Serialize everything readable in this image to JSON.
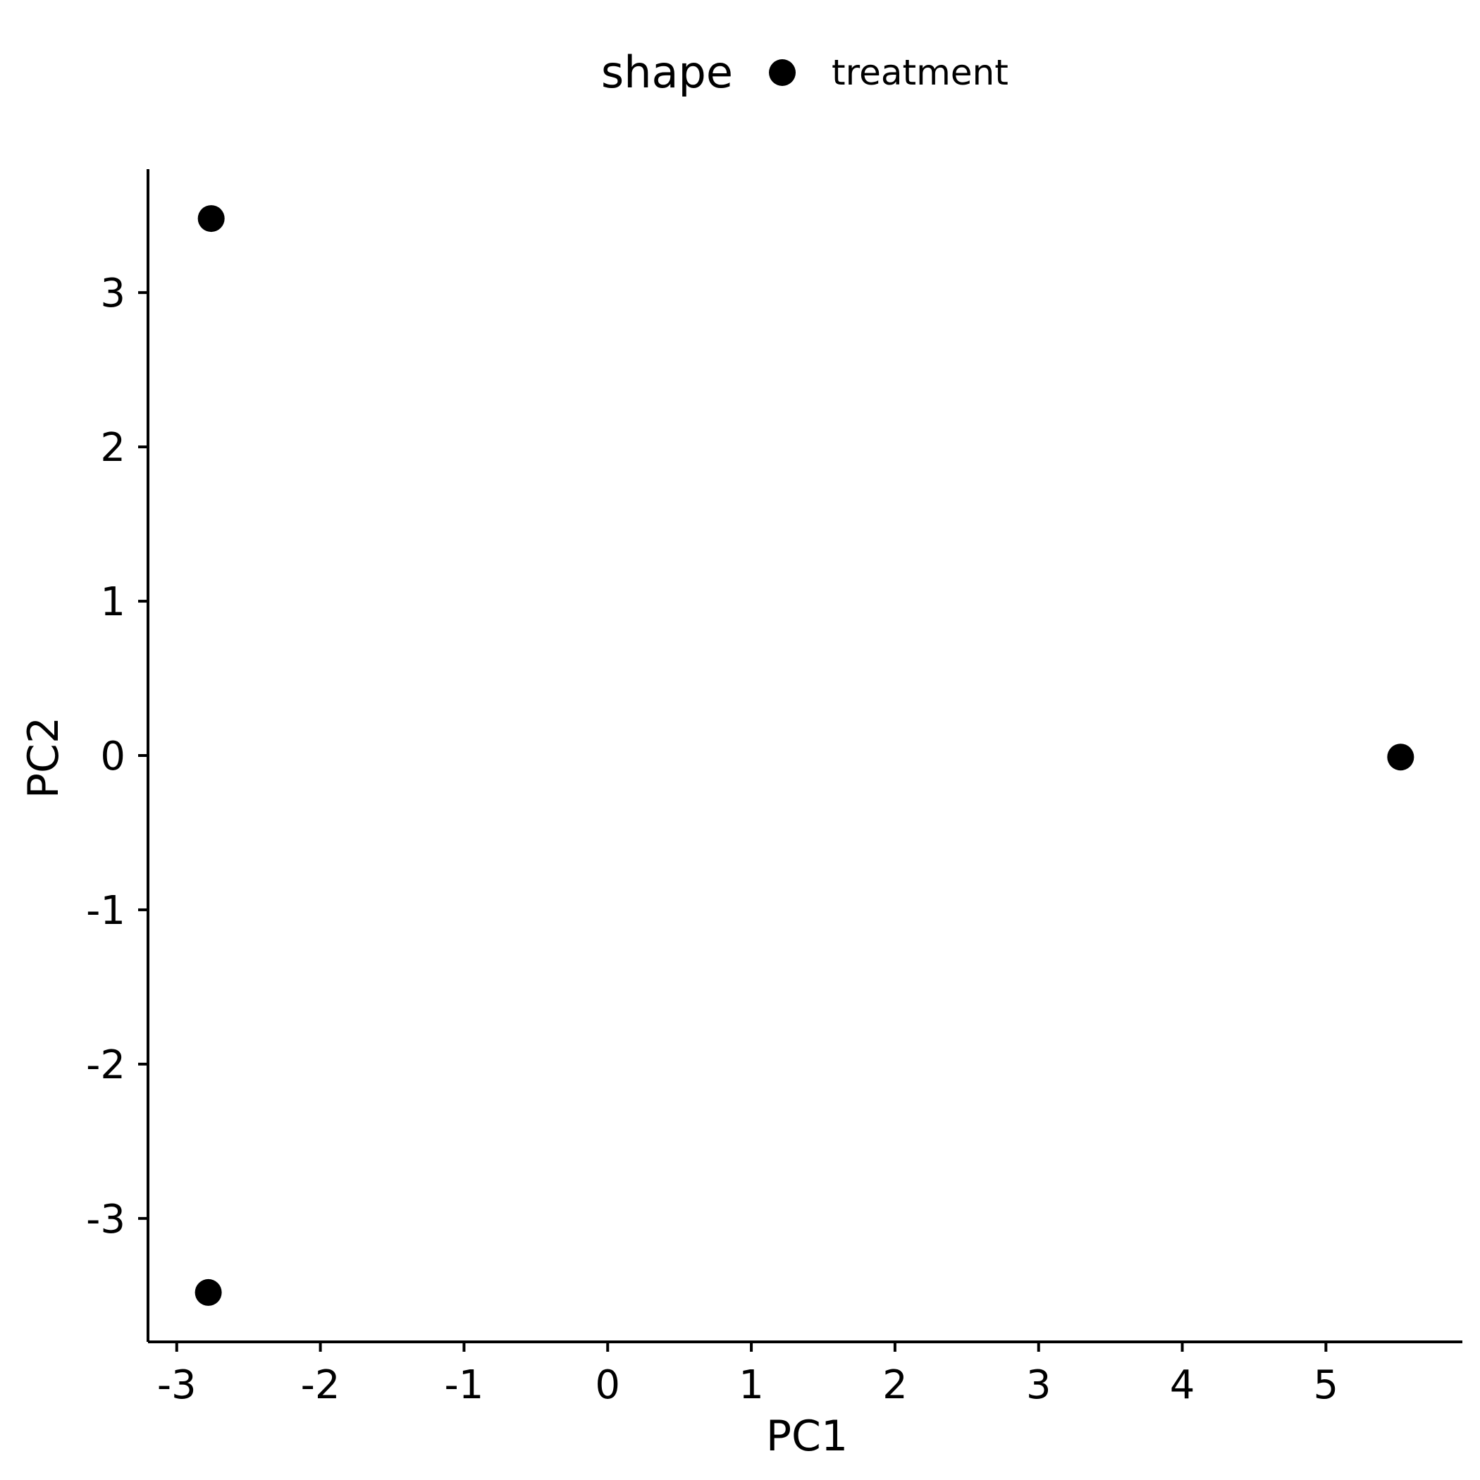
{
  "chart_data": {
    "type": "scatter",
    "xlabel": "PC1",
    "ylabel": "PC2",
    "xlim": [
      -3.2,
      5.95
    ],
    "ylim": [
      -3.8,
      3.8
    ],
    "x_ticks": [
      -3,
      -2,
      -1,
      0,
      1,
      2,
      3,
      4,
      5
    ],
    "y_ticks": [
      -3,
      -2,
      -1,
      0,
      1,
      2,
      3
    ],
    "x_tick_labels": [
      "-3",
      "-2",
      "-1",
      "0",
      "1",
      "2",
      "3",
      "4",
      "5"
    ],
    "y_tick_labels": [
      "-3",
      "-2",
      "-1",
      "0",
      "1",
      "2",
      "3"
    ],
    "grid": false,
    "legend": {
      "position": "top",
      "title": "shape",
      "entries": [
        {
          "label": "treatment",
          "marker": "circle",
          "color": "#000000"
        }
      ]
    },
    "series": [
      {
        "name": "treatment",
        "color": "#000000",
        "points": [
          {
            "x": -2.76,
            "y": 3.48
          },
          {
            "x": -2.78,
            "y": -3.48
          },
          {
            "x": 5.52,
            "y": -0.01
          }
        ]
      }
    ]
  }
}
